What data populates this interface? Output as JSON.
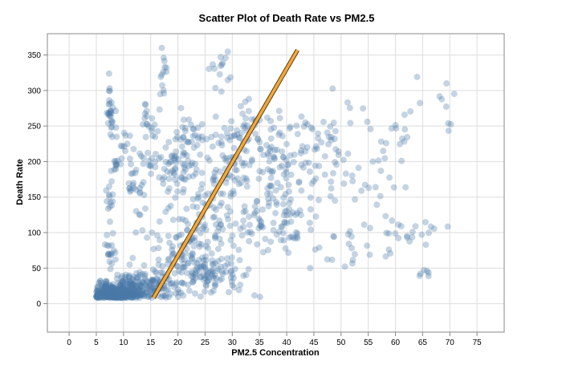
{
  "chart_data": {
    "type": "scatter",
    "title": "Scatter Plot of Death Rate vs PM2.5",
    "xlabel": "PM2.5 Concentration",
    "ylabel": "Death Rate",
    "xlim": [
      -4,
      80
    ],
    "ylim": [
      -40,
      380
    ],
    "x_ticks": [
      0,
      5,
      10,
      15,
      20,
      25,
      30,
      35,
      40,
      45,
      50,
      55,
      60,
      65,
      70,
      75
    ],
    "y_ticks": [
      0,
      50,
      100,
      150,
      200,
      250,
      300,
      350
    ],
    "grid": true,
    "point_color": "#4c78a8",
    "line_color": "#f2a93b",
    "line_outline_color": "#5a3c10",
    "trend_line": {
      "x": [
        15.5,
        42
      ],
      "y": [
        8,
        357
      ]
    },
    "clusters": [
      {
        "cx": 8.5,
        "cy": 15,
        "sx": 2.2,
        "sy": 8,
        "n": 320
      },
      {
        "cx": 13,
        "cy": 25,
        "sx": 3,
        "sy": 12,
        "n": 160
      },
      {
        "cx": 7.5,
        "cy": 270,
        "sx": 0.4,
        "sy": 20,
        "n": 30
      },
      {
        "cx": 7.5,
        "cy": 150,
        "sx": 0.4,
        "sy": 20,
        "n": 14
      },
      {
        "cx": 8.5,
        "cy": 195,
        "sx": 0.5,
        "sy": 5,
        "n": 10
      },
      {
        "cx": 10,
        "cy": 220,
        "sx": 0.6,
        "sy": 8,
        "n": 10
      },
      {
        "cx": 7.5,
        "cy": 70,
        "sx": 0.5,
        "sy": 12,
        "n": 18
      },
      {
        "cx": 12.5,
        "cy": 160,
        "sx": 1,
        "sy": 30,
        "n": 30
      },
      {
        "cx": 15,
        "cy": 230,
        "sx": 1,
        "sy": 30,
        "n": 28
      },
      {
        "cx": 17.5,
        "cy": 320,
        "sx": 0.5,
        "sy": 22,
        "n": 14
      },
      {
        "cx": 20,
        "cy": 190,
        "sx": 2,
        "sy": 18,
        "n": 60
      },
      {
        "cx": 22,
        "cy": 240,
        "sx": 1.5,
        "sy": 15,
        "n": 22
      },
      {
        "cx": 21,
        "cy": 60,
        "sx": 3,
        "sy": 25,
        "n": 90
      },
      {
        "cx": 26,
        "cy": 40,
        "sx": 4,
        "sy": 15,
        "n": 90
      },
      {
        "cx": 27.5,
        "cy": 330,
        "sx": 1,
        "sy": 12,
        "n": 14
      },
      {
        "cx": 26,
        "cy": 120,
        "sx": 4,
        "sy": 35,
        "n": 80
      },
      {
        "cx": 30,
        "cy": 190,
        "sx": 4,
        "sy": 30,
        "n": 80
      },
      {
        "cx": 34,
        "cy": 240,
        "sx": 4,
        "sy": 20,
        "n": 60
      },
      {
        "cx": 36,
        "cy": 120,
        "sx": 3,
        "sy": 20,
        "n": 45
      },
      {
        "cx": 40,
        "cy": 190,
        "sx": 3,
        "sy": 25,
        "n": 50
      },
      {
        "cx": 41,
        "cy": 100,
        "sx": 3,
        "sy": 20,
        "n": 35
      },
      {
        "cx": 45,
        "cy": 230,
        "sx": 4,
        "sy": 25,
        "n": 30
      },
      {
        "cx": 50,
        "cy": 180,
        "sx": 4,
        "sy": 40,
        "n": 30
      },
      {
        "cx": 52,
        "cy": 80,
        "sx": 3,
        "sy": 20,
        "n": 14
      },
      {
        "cx": 57,
        "cy": 200,
        "sx": 2,
        "sy": 30,
        "n": 16
      },
      {
        "cx": 58,
        "cy": 100,
        "sx": 3,
        "sy": 15,
        "n": 14
      },
      {
        "cx": 63,
        "cy": 100,
        "sx": 3,
        "sy": 10,
        "n": 14
      },
      {
        "cx": 62,
        "cy": 250,
        "sx": 2,
        "sy": 15,
        "n": 8
      },
      {
        "cx": 65.5,
        "cy": 45,
        "sx": 0.8,
        "sy": 4,
        "n": 6
      },
      {
        "cx": 68.5,
        "cy": 300,
        "sx": 1.5,
        "sy": 15,
        "n": 6
      },
      {
        "cx": 70.5,
        "cy": 265,
        "sx": 1.5,
        "sy": 15,
        "n": 4
      }
    ]
  }
}
